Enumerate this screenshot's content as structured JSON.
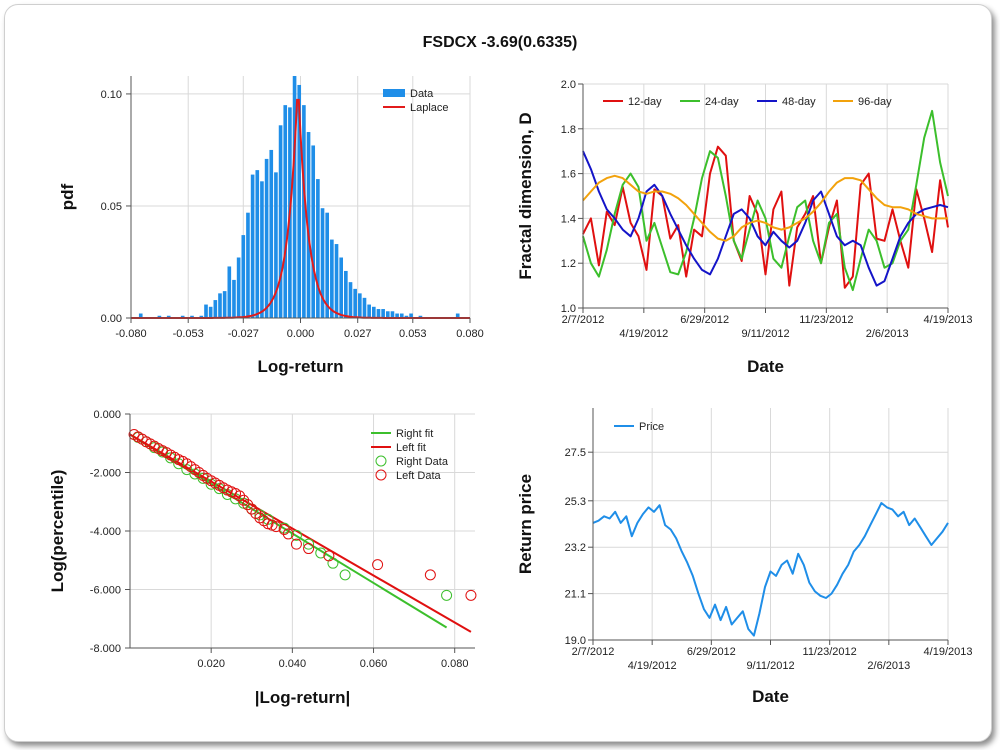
{
  "title": "FSDCX -3.69(0.6335)",
  "chart_data": [
    {
      "type": "bar",
      "xlabel": "Log-return",
      "ylabel": "pdf",
      "xlim": [
        -0.08,
        0.08
      ],
      "ylim": [
        0,
        0.108
      ],
      "xticks": [
        -0.08,
        -0.053,
        -0.027,
        0.0,
        0.027,
        0.053,
        0.08
      ],
      "xtick_labels": [
        "-0.080",
        "-0.053",
        "-0.027",
        "0.000",
        "0.027",
        "0.053",
        "0.080"
      ],
      "yticks": [
        0,
        0.05,
        0.1
      ],
      "ytick_labels": [
        "0.00",
        "0.05",
        "0.10"
      ],
      "legend": [
        "Data",
        "Laplace"
      ],
      "legend_position": "top-right",
      "colors": {
        "bar": "#1f8ee8",
        "fit": "#e21b1b"
      },
      "bin_width": 0.0022,
      "bin_centers": [
        -0.0754,
        -0.0666,
        -0.0622,
        -0.0556,
        -0.0512,
        -0.0468,
        -0.0446,
        -0.0424,
        -0.0402,
        -0.038,
        -0.0358,
        -0.0336,
        -0.0314,
        -0.0292,
        -0.027,
        -0.0248,
        -0.0226,
        -0.0204,
        -0.0182,
        -0.016,
        -0.0138,
        -0.0116,
        -0.0094,
        -0.0072,
        -0.005,
        -0.0028,
        -0.0006,
        0.0016,
        0.0038,
        0.006,
        0.0082,
        0.0104,
        0.0126,
        0.0148,
        0.017,
        0.0192,
        0.0214,
        0.0236,
        0.0258,
        0.028,
        0.0302,
        0.0324,
        0.0346,
        0.0368,
        0.039,
        0.0412,
        0.0434,
        0.0456,
        0.0478,
        0.05,
        0.0522,
        0.0566,
        0.0742
      ],
      "values": [
        0.002,
        0.001,
        0.001,
        0.001,
        0.001,
        0.001,
        0.006,
        0.005,
        0.008,
        0.011,
        0.012,
        0.023,
        0.017,
        0.027,
        0.037,
        0.047,
        0.064,
        0.066,
        0.061,
        0.071,
        0.075,
        0.065,
        0.086,
        0.095,
        0.094,
        0.108,
        0.104,
        0.095,
        0.083,
        0.077,
        0.062,
        0.049,
        0.047,
        0.035,
        0.033,
        0.027,
        0.021,
        0.016,
        0.013,
        0.011,
        0.009,
        0.006,
        0.005,
        0.004,
        0.004,
        0.003,
        0.003,
        0.002,
        0.002,
        0.001,
        0.002,
        0.001,
        0.002
      ],
      "laplace": {
        "mu": -0.0012,
        "b": 0.0047,
        "peak": 0.106
      }
    },
    {
      "type": "line",
      "xlabel": "Date",
      "ylabel": "Fractal dimension, D",
      "ylim": [
        1.0,
        2.0
      ],
      "yticks": [
        1.0,
        1.2,
        1.4,
        1.6,
        1.8,
        2.0
      ],
      "ytick_labels": [
        "1.0",
        "1.2",
        "1.4",
        "1.6",
        "1.8",
        "2.0"
      ],
      "xtick_labels": [
        "2/7/2012",
        "4/19/2012",
        "6/29/2012",
        "9/11/2012",
        "11/23/2012",
        "2/6/2013",
        "4/19/2013"
      ],
      "legend_position": "top",
      "series": [
        {
          "name": "12-day",
          "color": "#e01010",
          "values": [
            1.33,
            1.4,
            1.19,
            1.43,
            1.37,
            1.54,
            1.38,
            1.32,
            1.17,
            1.53,
            1.5,
            1.31,
            1.37,
            1.14,
            1.35,
            1.32,
            1.6,
            1.72,
            1.68,
            1.3,
            1.21,
            1.5,
            1.42,
            1.15,
            1.44,
            1.52,
            1.1,
            1.36,
            1.42,
            1.5,
            1.2,
            1.36,
            1.48,
            1.09,
            1.14,
            1.55,
            1.6,
            1.31,
            1.3,
            1.44,
            1.3,
            1.18,
            1.53,
            1.4,
            1.25,
            1.57,
            1.36
          ]
        },
        {
          "name": "24-day",
          "color": "#3cbf2c",
          "values": [
            1.32,
            1.2,
            1.14,
            1.26,
            1.42,
            1.55,
            1.6,
            1.54,
            1.3,
            1.38,
            1.27,
            1.16,
            1.15,
            1.25,
            1.4,
            1.58,
            1.7,
            1.67,
            1.5,
            1.3,
            1.22,
            1.35,
            1.48,
            1.4,
            1.22,
            1.18,
            1.32,
            1.45,
            1.48,
            1.3,
            1.2,
            1.38,
            1.42,
            1.18,
            1.08,
            1.22,
            1.35,
            1.3,
            1.18,
            1.2,
            1.3,
            1.35,
            1.55,
            1.76,
            1.88,
            1.65,
            1.5
          ]
        },
        {
          "name": "48-day",
          "color": "#1414c8",
          "values": [
            1.7,
            1.62,
            1.52,
            1.44,
            1.4,
            1.35,
            1.32,
            1.4,
            1.52,
            1.55,
            1.5,
            1.42,
            1.35,
            1.28,
            1.22,
            1.17,
            1.15,
            1.22,
            1.32,
            1.42,
            1.44,
            1.4,
            1.32,
            1.28,
            1.34,
            1.3,
            1.27,
            1.3,
            1.38,
            1.48,
            1.52,
            1.42,
            1.32,
            1.28,
            1.3,
            1.28,
            1.18,
            1.1,
            1.12,
            1.22,
            1.32,
            1.38,
            1.42,
            1.44,
            1.45,
            1.46,
            1.45
          ]
        },
        {
          "name": "96-day",
          "color": "#f2a20c",
          "values": [
            1.48,
            1.52,
            1.56,
            1.58,
            1.59,
            1.58,
            1.55,
            1.52,
            1.51,
            1.52,
            1.52,
            1.51,
            1.49,
            1.46,
            1.42,
            1.38,
            1.34,
            1.31,
            1.3,
            1.32,
            1.36,
            1.38,
            1.39,
            1.38,
            1.36,
            1.35,
            1.36,
            1.38,
            1.4,
            1.43,
            1.47,
            1.52,
            1.56,
            1.58,
            1.58,
            1.57,
            1.53,
            1.49,
            1.46,
            1.45,
            1.45,
            1.44,
            1.42,
            1.41,
            1.4,
            1.4,
            1.4
          ]
        }
      ]
    },
    {
      "type": "scatter",
      "xlabel": "|Log-return|",
      "ylabel": "Log(percentile)",
      "xlim": [
        0,
        0.085
      ],
      "ylim": [
        -8.0,
        0.0
      ],
      "xticks": [
        0.02,
        0.04,
        0.06,
        0.08
      ],
      "xtick_labels": [
        "0.020",
        "0.040",
        "0.060",
        "0.080"
      ],
      "yticks": [
        0,
        -2,
        -4,
        -6,
        -8
      ],
      "ytick_labels": [
        "0.000",
        "-2.000",
        "-4.000",
        "-6.000",
        "-8.000"
      ],
      "legend_position": "top-right",
      "series": [
        {
          "name": "Right fit",
          "color": "#3cbf2c",
          "kind": "line",
          "x": [
            0.0,
            0.078
          ],
          "y": [
            -0.7,
            -7.3
          ]
        },
        {
          "name": "Left fit",
          "color": "#e01010",
          "kind": "line",
          "x": [
            0.0,
            0.084
          ],
          "y": [
            -0.7,
            -7.45
          ]
        },
        {
          "name": "Right Data",
          "color": "#3cbf2c",
          "kind": "points",
          "x": [
            0.002,
            0.004,
            0.006,
            0.008,
            0.01,
            0.012,
            0.014,
            0.016,
            0.018,
            0.02,
            0.022,
            0.024,
            0.026,
            0.028,
            0.03,
            0.032,
            0.034,
            0.038,
            0.041,
            0.044,
            0.047,
            0.05,
            0.053,
            0.078
          ],
          "y": [
            -0.8,
            -0.95,
            -1.15,
            -1.3,
            -1.5,
            -1.7,
            -1.9,
            -2.05,
            -2.2,
            -2.4,
            -2.55,
            -2.75,
            -2.9,
            -3.05,
            -3.25,
            -3.45,
            -3.6,
            -3.9,
            -4.15,
            -4.45,
            -4.75,
            -5.1,
            -5.5,
            -6.2
          ]
        },
        {
          "name": "Left Data",
          "color": "#e01010",
          "kind": "points",
          "x": [
            0.001,
            0.002,
            0.003,
            0.004,
            0.005,
            0.006,
            0.007,
            0.008,
            0.009,
            0.01,
            0.011,
            0.012,
            0.013,
            0.014,
            0.015,
            0.016,
            0.017,
            0.018,
            0.019,
            0.02,
            0.021,
            0.022,
            0.023,
            0.024,
            0.025,
            0.026,
            0.027,
            0.028,
            0.029,
            0.03,
            0.031,
            0.032,
            0.033,
            0.034,
            0.035,
            0.036,
            0.038,
            0.039,
            0.041,
            0.044,
            0.049,
            0.061,
            0.074,
            0.084
          ],
          "y": [
            -0.7,
            -0.78,
            -0.86,
            -0.95,
            -1.02,
            -1.1,
            -1.18,
            -1.25,
            -1.32,
            -1.4,
            -1.48,
            -1.56,
            -1.62,
            -1.7,
            -1.8,
            -1.9,
            -2.0,
            -2.1,
            -2.2,
            -2.28,
            -2.36,
            -2.44,
            -2.52,
            -2.6,
            -2.66,
            -2.72,
            -2.8,
            -2.95,
            -3.1,
            -3.25,
            -3.4,
            -3.55,
            -3.65,
            -3.75,
            -3.8,
            -3.85,
            -3.95,
            -4.1,
            -4.45,
            -4.6,
            -4.85,
            -5.15,
            -5.5,
            -6.2
          ]
        }
      ]
    },
    {
      "type": "line",
      "xlabel": "Date",
      "ylabel": "Return price",
      "ylim": [
        19.0,
        29.5
      ],
      "yticks": [
        19.0,
        21.1,
        23.2,
        25.3,
        27.5
      ],
      "ytick_labels": [
        "19.0",
        "21.1",
        "23.2",
        "25.3",
        "27.5"
      ],
      "xtick_labels": [
        "2/7/2012",
        "4/19/2012",
        "6/29/2012",
        "9/11/2012",
        "11/23/2012",
        "2/6/2013",
        "4/19/2013"
      ],
      "legend_position": "top-left",
      "series": [
        {
          "name": "Price",
          "color": "#1f8ee8",
          "values": [
            24.3,
            24.4,
            24.6,
            24.5,
            24.8,
            24.3,
            24.6,
            23.7,
            24.3,
            24.7,
            25.0,
            24.8,
            25.1,
            24.2,
            24.0,
            23.6,
            23.0,
            22.5,
            21.9,
            21.1,
            20.4,
            20.0,
            20.6,
            19.9,
            20.5,
            19.7,
            20.0,
            20.3,
            19.5,
            19.2,
            20.2,
            21.4,
            22.1,
            21.9,
            22.4,
            22.6,
            22.0,
            22.9,
            22.4,
            21.6,
            21.2,
            21.0,
            20.9,
            21.1,
            21.5,
            22.0,
            22.4,
            23.0,
            23.3,
            23.7,
            24.2,
            24.7,
            25.2,
            25.0,
            24.9,
            24.6,
            24.8,
            24.2,
            24.5,
            24.1,
            23.7,
            23.3,
            23.6,
            23.9,
            24.3
          ]
        }
      ]
    }
  ]
}
